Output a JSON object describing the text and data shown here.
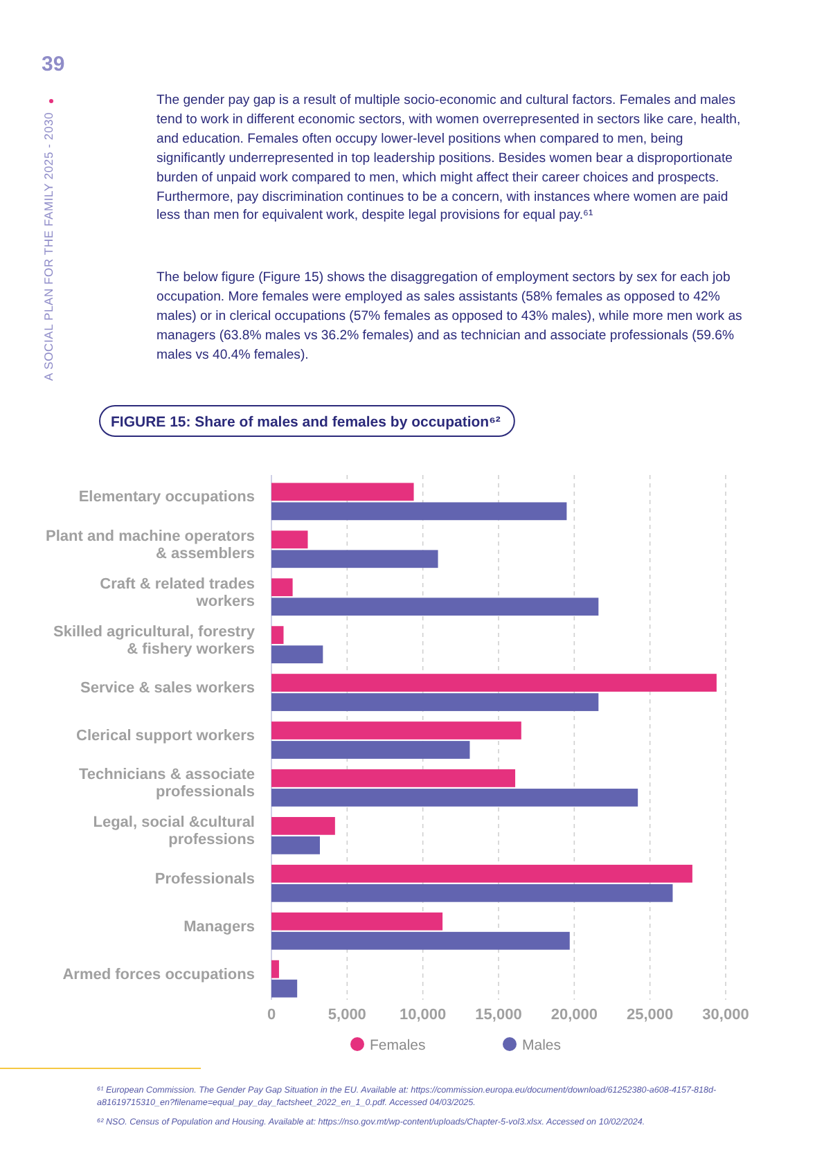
{
  "chart_data": {
    "type": "bar",
    "orientation": "horizontal",
    "title": "FIGURE 15: Share of males and females by occupation⁶²",
    "categories": [
      "Elementary occupations",
      "Plant and machine operators & assemblers",
      "Craft & related trades workers",
      "Skilled agricultural, forestry & fishery workers",
      "Service & sales workers",
      "Clerical support workers",
      "Technicians & associate professionals",
      "Legal, social &cultural professions",
      "Professionals",
      "Managers",
      "Armed forces occupations"
    ],
    "series": [
      {
        "name": "Females",
        "color": "#e5317e",
        "values": [
          9400,
          2400,
          1400,
          800,
          29400,
          16500,
          16100,
          4200,
          27800,
          11300,
          500
        ]
      },
      {
        "name": "Males",
        "color": "#6264b0",
        "values": [
          19500,
          11000,
          21600,
          3400,
          21600,
          13100,
          24200,
          3200,
          26500,
          19700,
          1700
        ]
      }
    ],
    "xlim": [
      0,
      30000
    ],
    "xticks": [
      {
        "value": 0,
        "label": "0"
      },
      {
        "value": 5000,
        "label": "5,000"
      },
      {
        "value": 10000,
        "label": "10,000"
      },
      {
        "value": 15000,
        "label": "15,000"
      },
      {
        "value": 20000,
        "label": "20,000"
      },
      {
        "value": 25000,
        "label": "25,000"
      },
      {
        "value": 30000,
        "label": "30,000"
      }
    ],
    "grid": "x",
    "legend": "bottom",
    "annotations": [
      "39",
      "A SOCIAL PLAN FOR THE FAMILY 2025 - 2030",
      "The gender pay gap is a result of multiple socio-economic and cultural factors. Females and males tend to work in different economic sectors, with women overrepresented in sectors like care, health, and education. Females often occupy lower-level positions when compared to men, being significantly underrepresented in top leadership positions. Besides women bear a disproportionate burden of unpaid work compared to men, which might affect their career choices and prospects. Furthermore, pay discrimination continues to be a concern, with instances where women are paid less than men for equivalent work, despite legal provisions for equal pay.⁶¹",
      "The below figure (Figure 15) shows the disaggregation of employment sectors by sex for each job occupation. More females were employed as sales assistants (58% females as opposed to 42% males) or in clerical occupations (57% females as opposed to 43% males), while more men work as managers (63.8% males vs 36.2% females) and as technician and associate professionals (59.6% males vs 40.4% females).",
      "⁶¹ European Commission. The Gender Pay Gap Situation in the EU. Available at: https://commission.europa.eu/document/download/61252380-a608-4157-818d-a81619715310_en?filename=equal_pay_day_factsheet_2022_en_1_0.pdf. Accessed 04/03/2025.",
      "⁶² NSO. Census of Population and Housing. Available at: https://nso.gov.mt/wp-content/uploads/Chapter-5-vol3.xlsx. Accessed on 10/02/2024."
    ]
  }
}
